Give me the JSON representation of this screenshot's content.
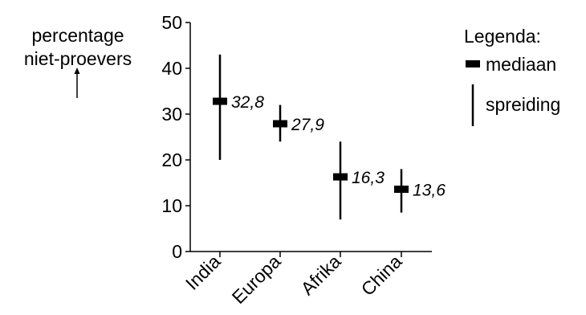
{
  "chart_data": {
    "type": "range",
    "categories": [
      "India",
      "Europa",
      "Afrika",
      "China"
    ],
    "median": [
      32.8,
      27.9,
      16.3,
      13.6
    ],
    "median_labels": [
      "32,8",
      "27,9",
      "16,3",
      "13,6"
    ],
    "range": [
      [
        20,
        43
      ],
      [
        24,
        32
      ],
      [
        7,
        24
      ],
      [
        8.5,
        18
      ]
    ],
    "ylabel": [
      "percentage",
      "niet-proevers"
    ],
    "ylim": [
      0,
      50
    ],
    "yticks": [
      0,
      10,
      20,
      30,
      40,
      50
    ],
    "legend": {
      "title": "Legenda:",
      "items": [
        {
          "symbol": "bar",
          "label": "mediaan"
        },
        {
          "symbol": "line",
          "label": "spreiding"
        }
      ],
      "placement": "top-right"
    }
  }
}
